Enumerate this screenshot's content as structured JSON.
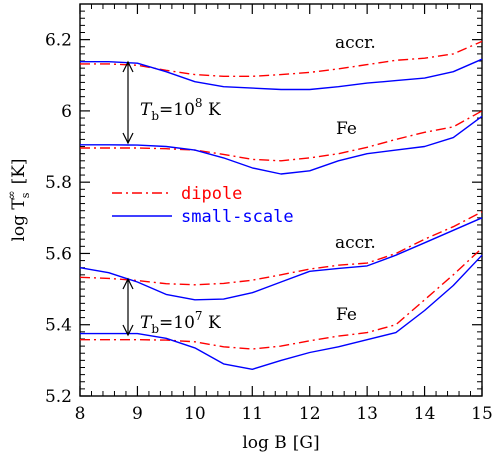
{
  "chart_data": {
    "type": "line",
    "xlabel_text": "log B",
    "xlabel_unit": "[G]",
    "ylabel_main": "log T",
    "ylabel_sub": "s",
    "ylabel_sup": "∞",
    "ylabel_unit": "[K]",
    "xlim": [
      8,
      15
    ],
    "ylim": [
      5.2,
      6.3
    ],
    "xticks": [
      8,
      9,
      10,
      11,
      12,
      13,
      14,
      15
    ],
    "yticks": [
      5.2,
      5.4,
      5.6,
      5.8,
      6,
      6.2
    ],
    "ytick_labels": [
      "5.2",
      "5.4",
      "5.6",
      "5.8",
      "6",
      "6.2"
    ],
    "xtick_labels": [
      "8",
      "9",
      "10",
      "11",
      "12",
      "13",
      "14",
      "15"
    ],
    "grid": false,
    "legend": {
      "placement": "middle-left",
      "entries": [
        {
          "label": "dipole",
          "color": "#ff0000",
          "style": "dashdot"
        },
        {
          "label": "small-scale",
          "color": "#0000ff",
          "style": "solid"
        }
      ]
    },
    "annotations": {
      "accr_upper": "accr.",
      "fe_upper": "Fe",
      "accr_lower": "accr.",
      "fe_lower": "Fe",
      "tb_upper": {
        "prefix": "T",
        "sub": "b",
        "mid": "=10",
        "sup": "8",
        "unit": " K"
      },
      "tb_lower": {
        "prefix": "T",
        "sub": "b",
        "mid": "=10",
        "sup": "7",
        "unit": " K"
      }
    },
    "series": [
      {
        "name": "dipole",
        "group": "Tb=1e8 accr.",
        "color": "#ff0000",
        "style": "dashdot",
        "x": [
          8,
          8.5,
          9,
          9.5,
          10,
          10.5,
          11,
          11.5,
          12,
          12.5,
          13,
          13.5,
          14,
          14.5,
          15
        ],
        "y": [
          6.132,
          6.132,
          6.128,
          6.114,
          6.102,
          6.097,
          6.097,
          6.102,
          6.108,
          6.118,
          6.13,
          6.142,
          6.148,
          6.16,
          6.195
        ]
      },
      {
        "name": "small-scale",
        "group": "Tb=1e8 accr.",
        "color": "#0000ff",
        "style": "solid",
        "x": [
          8,
          8.5,
          9,
          9.5,
          10,
          10.5,
          11,
          11.5,
          12,
          12.5,
          13,
          13.5,
          14,
          14.5,
          15
        ],
        "y": [
          6.138,
          6.138,
          6.134,
          6.11,
          6.082,
          6.068,
          6.064,
          6.06,
          6.06,
          6.068,
          6.078,
          6.085,
          6.092,
          6.11,
          6.145
        ]
      },
      {
        "name": "dipole",
        "group": "Tb=1e8 Fe",
        "color": "#ff0000",
        "style": "dashdot",
        "x": [
          8,
          8.5,
          9,
          9.5,
          10,
          10.5,
          11,
          11.5,
          12,
          12.5,
          13,
          13.5,
          14,
          14.5,
          15
        ],
        "y": [
          5.896,
          5.896,
          5.896,
          5.894,
          5.89,
          5.878,
          5.864,
          5.86,
          5.868,
          5.88,
          5.898,
          5.92,
          5.94,
          5.955,
          6.0
        ]
      },
      {
        "name": "small-scale",
        "group": "Tb=1e8 Fe",
        "color": "#0000ff",
        "style": "solid",
        "x": [
          8,
          8.5,
          9,
          9.5,
          10,
          10.5,
          11,
          11.5,
          12,
          12.5,
          13,
          13.5,
          14,
          14.5,
          15
        ],
        "y": [
          5.905,
          5.905,
          5.904,
          5.9,
          5.89,
          5.868,
          5.84,
          5.823,
          5.832,
          5.86,
          5.88,
          5.89,
          5.9,
          5.925,
          5.985
        ]
      },
      {
        "name": "dipole",
        "group": "Tb=1e7 accr.",
        "color": "#ff0000",
        "style": "dashdot",
        "x": [
          8,
          8.5,
          9,
          9.5,
          10,
          10.5,
          11,
          11.5,
          12,
          12.5,
          13,
          13.5,
          14,
          14.5,
          15
        ],
        "y": [
          5.533,
          5.53,
          5.524,
          5.515,
          5.512,
          5.516,
          5.525,
          5.54,
          5.556,
          5.567,
          5.573,
          5.6,
          5.64,
          5.675,
          5.717
        ]
      },
      {
        "name": "small-scale",
        "group": "Tb=1e7 accr.",
        "color": "#0000ff",
        "style": "solid",
        "x": [
          8,
          8.5,
          9,
          9.5,
          10,
          10.5,
          11,
          11.5,
          12,
          12.5,
          13,
          13.5,
          14,
          14.5,
          15
        ],
        "y": [
          5.56,
          5.546,
          5.52,
          5.485,
          5.47,
          5.472,
          5.49,
          5.52,
          5.55,
          5.558,
          5.565,
          5.595,
          5.63,
          5.665,
          5.7
        ]
      },
      {
        "name": "dipole",
        "group": "Tb=1e7 Fe",
        "color": "#ff0000",
        "style": "dashdot",
        "x": [
          8,
          8.5,
          9,
          9.5,
          10,
          10.5,
          11,
          11.5,
          12,
          12.5,
          13,
          13.5,
          14,
          14.5,
          15
        ],
        "y": [
          5.358,
          5.358,
          5.358,
          5.357,
          5.352,
          5.338,
          5.332,
          5.34,
          5.355,
          5.368,
          5.378,
          5.4,
          5.47,
          5.54,
          5.615
        ]
      },
      {
        "name": "small-scale",
        "group": "Tb=1e7 Fe",
        "color": "#0000ff",
        "style": "solid",
        "x": [
          8,
          8.5,
          9,
          9.5,
          10,
          10.5,
          11,
          11.5,
          12,
          12.5,
          13,
          13.5,
          14,
          14.5,
          15
        ],
        "y": [
          5.375,
          5.375,
          5.375,
          5.362,
          5.335,
          5.29,
          5.275,
          5.3,
          5.322,
          5.338,
          5.358,
          5.378,
          5.44,
          5.51,
          5.595
        ]
      }
    ]
  }
}
